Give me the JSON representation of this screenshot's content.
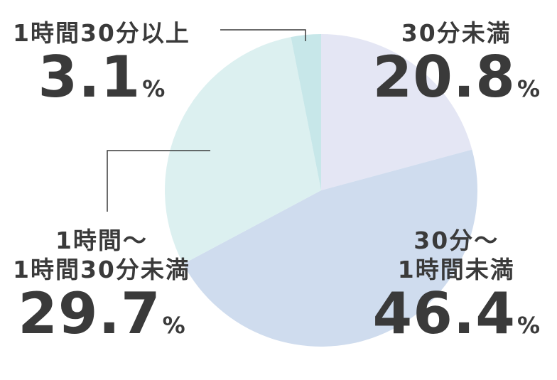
{
  "chart_data": {
    "type": "pie",
    "title": "",
    "slices": [
      {
        "label_lines": [
          "30分未満"
        ],
        "value": "20.8",
        "unit": "%",
        "color": "#e4e6f4"
      },
      {
        "label_lines": [
          "30分～",
          "1時間未満"
        ],
        "value": "46.4",
        "unit": "%",
        "color": "#cfdcee"
      },
      {
        "label_lines": [
          "1時間～",
          "1時間30分未満"
        ],
        "value": "29.7",
        "unit": "%",
        "color": "#dcf0f0"
      },
      {
        "label_lines": [
          "1時間30分以上"
        ],
        "value": "3.1",
        "unit": "%",
        "color": "#c7e7e9"
      }
    ],
    "start_angle": "12 o'clock",
    "direction": "clockwise",
    "leader_line_color": "#3a3a3a",
    "text_color": "#3a3a3a"
  }
}
